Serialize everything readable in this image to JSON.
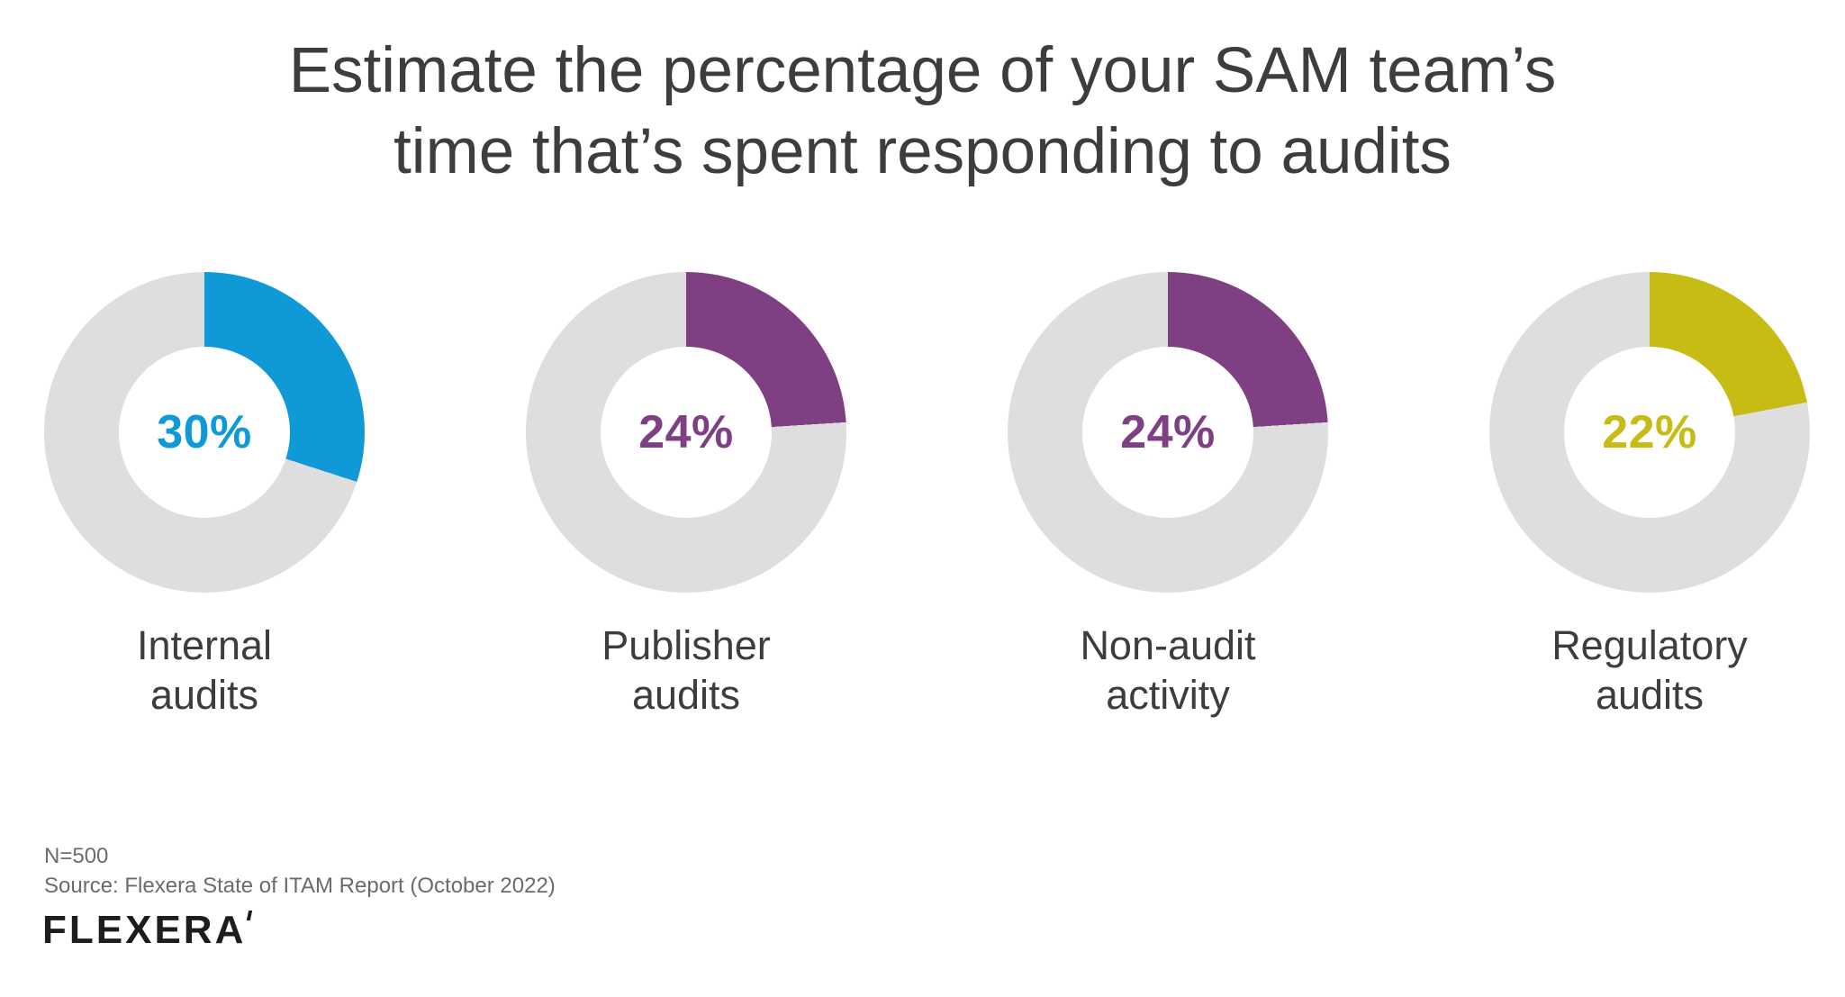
{
  "header": {
    "title_line1": "Estimate the percentage of your SAM team’s",
    "title_line2": "time that’s spent responding to audits"
  },
  "chart_data": {
    "type": "pie",
    "variant": "donut-small-multiples",
    "title": "Estimate the percentage of your SAM team’s time that’s spent responding to audits",
    "unit": "%",
    "start_angle": "12-o-clock",
    "direction": "clockwise",
    "remainder_color": "#dedede",
    "legend_position": "none",
    "charts": [
      {
        "label": "Internal\naudits",
        "value": 30,
        "value_label": "30%",
        "color": "#0f99d6"
      },
      {
        "label": "Publisher\naudits",
        "value": 24,
        "value_label": "24%",
        "color": "#7e4083"
      },
      {
        "label": "Non-audit\nactivity",
        "value": 24,
        "value_label": "24%",
        "color": "#7e4083"
      },
      {
        "label": "Regulatory\naudits",
        "value": 22,
        "value_label": "22%",
        "color": "#c6bc13"
      }
    ]
  },
  "footer": {
    "n_label": "N=500",
    "source": "Source: Flexera State of ITAM Report (October 2022)",
    "logo_text": "flexera"
  },
  "colors": {
    "title_text": "#3d3d3d",
    "label_text": "#3d3d3d",
    "footer_text": "#6b6b6b",
    "logo_color": "#1d1d1d",
    "background": "#ffffff"
  }
}
